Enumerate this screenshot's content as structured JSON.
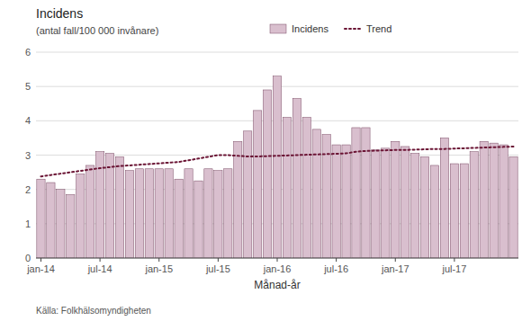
{
  "chart_data": {
    "type": "bar",
    "title": "Incidens",
    "subtitle": "(antal fall/100 000 invånare)",
    "x_label": "Månad-år",
    "source": "Källa: Folkhälsomyndigheten",
    "categories": [
      "jan-14",
      null,
      null,
      null,
      null,
      null,
      "jul-14",
      null,
      null,
      null,
      null,
      null,
      "jan-15",
      null,
      null,
      null,
      null,
      null,
      "jul-15",
      null,
      null,
      null,
      null,
      null,
      "jan-16",
      null,
      null,
      null,
      null,
      null,
      "jul-16",
      null,
      null,
      null,
      null,
      null,
      "jan-17",
      null,
      null,
      null,
      null,
      null,
      "jul-17",
      null,
      null,
      null,
      null,
      null,
      null
    ],
    "series": [
      {
        "name": "Incidens",
        "type": "bar",
        "color": "#d9bfce",
        "values": [
          2.3,
          2.2,
          2.0,
          1.85,
          2.45,
          2.7,
          3.1,
          3.05,
          2.95,
          2.55,
          2.6,
          2.6,
          2.6,
          2.6,
          2.3,
          2.6,
          2.25,
          2.6,
          2.55,
          2.6,
          3.4,
          3.7,
          4.3,
          4.9,
          5.3,
          4.1,
          4.65,
          4.1,
          3.75,
          3.6,
          3.3,
          3.3,
          3.8,
          3.8,
          3.15,
          3.2,
          3.4,
          3.25,
          3.05,
          2.95,
          2.7,
          3.5,
          2.75,
          2.75,
          3.1,
          3.4,
          3.35,
          3.3,
          2.95
        ]
      },
      {
        "name": "Trend",
        "type": "line",
        "color": "#6b1535",
        "line_style": "dotted",
        "values": [
          2.38,
          2.42,
          2.46,
          2.5,
          2.54,
          2.58,
          2.62,
          2.65,
          2.68,
          2.7,
          2.72,
          2.74,
          2.76,
          2.78,
          2.8,
          2.85,
          2.9,
          2.95,
          3.0,
          3.0,
          2.98,
          2.96,
          2.96,
          2.97,
          2.98,
          2.99,
          3.0,
          3.01,
          3.02,
          3.03,
          3.04,
          3.05,
          3.1,
          3.12,
          3.13,
          3.14,
          3.15,
          3.15,
          3.16,
          3.17,
          3.18,
          3.18,
          3.19,
          3.2,
          3.21,
          3.22,
          3.23,
          3.24,
          3.25
        ]
      }
    ],
    "ylim": [
      0,
      6
    ],
    "yticks": [
      0,
      1,
      2,
      3,
      4,
      5,
      6
    ],
    "grid": true,
    "legend": "top"
  }
}
